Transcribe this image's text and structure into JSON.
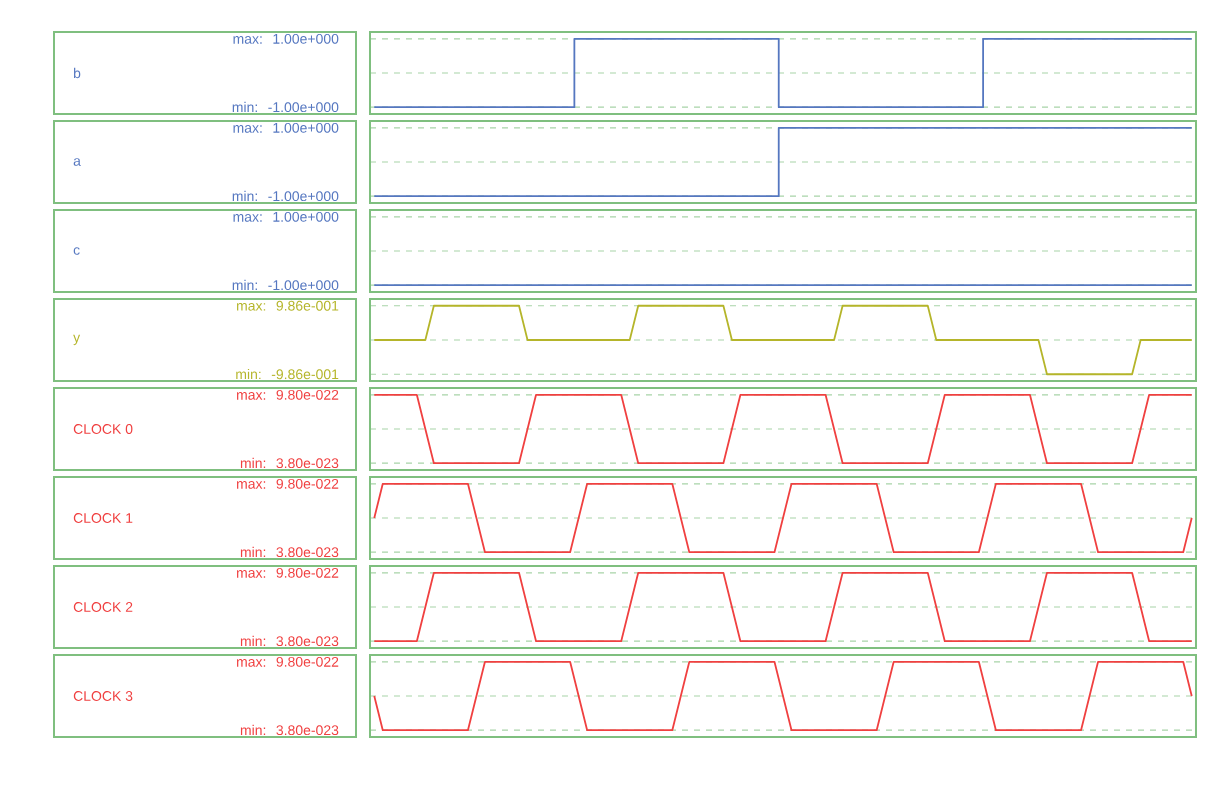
{
  "chart_data": [
    {
      "type": "step",
      "ylabel": "b",
      "color": "#5577c0",
      "grid": "y",
      "ylim": [
        -1.2,
        1.2
      ],
      "annotations": [
        "max:",
        "min:"
      ],
      "yticks": [
        {
          "value": 1,
          "label": "1.00e+000"
        },
        {
          "value": 0,
          "label": null
        },
        {
          "value": -1,
          "label": "-1.00e+000"
        }
      ],
      "categories": [
        null,
        null,
        null,
        null,
        null,
        null,
        null,
        null,
        null,
        null,
        null,
        null,
        null,
        null,
        null,
        null,
        null,
        null,
        null,
        null,
        null,
        null,
        null,
        null,
        null,
        null,
        null,
        null,
        null,
        null,
        null,
        null,
        null,
        null,
        null,
        null,
        null,
        null,
        null,
        null,
        null,
        null,
        null,
        null,
        null,
        null,
        null,
        null,
        null,
        null,
        null,
        null,
        null,
        null,
        null,
        null,
        null,
        null,
        null,
        null,
        null,
        null,
        null,
        null,
        null,
        null,
        null,
        null,
        null,
        null,
        null,
        null,
        null,
        null,
        null,
        null,
        null,
        null,
        null,
        null,
        null,
        null,
        null,
        null,
        null,
        null,
        null,
        null,
        null,
        null,
        null,
        null,
        null,
        null,
        null,
        null,
        null
      ],
      "values": [
        -1,
        -1,
        -1,
        -1,
        -1,
        -1,
        -1,
        -1,
        -1,
        -1,
        -1,
        -1,
        -1,
        -1,
        -1,
        -1,
        -1,
        -1,
        -1,
        -1,
        -1,
        -1,
        -1,
        -1,
        1,
        1,
        1,
        1,
        1,
        1,
        1,
        1,
        1,
        1,
        1,
        1,
        1,
        1,
        1,
        1,
        1,
        1,
        1,
        1,
        1,
        1,
        1,
        1,
        -1,
        -1,
        -1,
        -1,
        -1,
        -1,
        -1,
        -1,
        -1,
        -1,
        -1,
        -1,
        -1,
        -1,
        -1,
        -1,
        -1,
        -1,
        -1,
        -1,
        -1,
        -1,
        -1,
        -1,
        1,
        1,
        1,
        1,
        1,
        1,
        1,
        1,
        1,
        1,
        1,
        1,
        1,
        1,
        1,
        1,
        1,
        1,
        1,
        1,
        1,
        1,
        1,
        1,
        1
      ]
    },
    {
      "type": "step",
      "ylabel": "a",
      "color": "#5577c0",
      "grid": "y",
      "ylim": [
        -1.2,
        1.2
      ],
      "annotations": [
        "max:",
        "min:"
      ],
      "yticks": [
        {
          "value": 1,
          "label": "1.00e+000"
        },
        {
          "value": 0,
          "label": null
        },
        {
          "value": -1,
          "label": "-1.00e+000"
        }
      ],
      "categories": [
        null,
        null,
        null,
        null,
        null,
        null,
        null,
        null,
        null,
        null,
        null,
        null,
        null,
        null,
        null,
        null,
        null,
        null,
        null,
        null,
        null,
        null,
        null,
        null,
        null,
        null,
        null,
        null,
        null,
        null,
        null,
        null,
        null,
        null,
        null,
        null,
        null,
        null,
        null,
        null,
        null,
        null,
        null,
        null,
        null,
        null,
        null,
        null,
        null,
        null,
        null,
        null,
        null,
        null,
        null,
        null,
        null,
        null,
        null,
        null,
        null,
        null,
        null,
        null,
        null,
        null,
        null,
        null,
        null,
        null,
        null,
        null,
        null,
        null,
        null,
        null,
        null,
        null,
        null,
        null,
        null,
        null,
        null,
        null,
        null,
        null,
        null,
        null,
        null,
        null,
        null,
        null,
        null,
        null,
        null,
        null,
        null
      ],
      "values": [
        -1,
        -1,
        -1,
        -1,
        -1,
        -1,
        -1,
        -1,
        -1,
        -1,
        -1,
        -1,
        -1,
        -1,
        -1,
        -1,
        -1,
        -1,
        -1,
        -1,
        -1,
        -1,
        -1,
        -1,
        -1,
        -1,
        -1,
        -1,
        -1,
        -1,
        -1,
        -1,
        -1,
        -1,
        -1,
        -1,
        -1,
        -1,
        -1,
        -1,
        -1,
        -1,
        -1,
        -1,
        -1,
        -1,
        -1,
        -1,
        1,
        1,
        1,
        1,
        1,
        1,
        1,
        1,
        1,
        1,
        1,
        1,
        1,
        1,
        1,
        1,
        1,
        1,
        1,
        1,
        1,
        1,
        1,
        1,
        1,
        1,
        1,
        1,
        1,
        1,
        1,
        1,
        1,
        1,
        1,
        1,
        1,
        1,
        1,
        1,
        1,
        1,
        1,
        1,
        1,
        1,
        1,
        1,
        1
      ]
    },
    {
      "type": "step",
      "ylabel": "c",
      "color": "#5577c0",
      "grid": "y",
      "ylim": [
        -1.2,
        1.2
      ],
      "annotations": [
        "max:",
        "min:"
      ],
      "yticks": [
        {
          "value": 1,
          "label": "1.00e+000"
        },
        {
          "value": 0,
          "label": null
        },
        {
          "value": -1,
          "label": "-1.00e+000"
        }
      ],
      "categories": [
        null,
        null,
        null,
        null,
        null,
        null,
        null,
        null,
        null,
        null,
        null,
        null,
        null,
        null,
        null,
        null,
        null,
        null,
        null,
        null,
        null,
        null,
        null,
        null,
        null,
        null,
        null,
        null,
        null,
        null,
        null,
        null,
        null,
        null,
        null,
        null,
        null,
        null,
        null,
        null,
        null,
        null,
        null,
        null,
        null,
        null,
        null,
        null,
        null,
        null,
        null,
        null,
        null,
        null,
        null,
        null,
        null,
        null,
        null,
        null,
        null,
        null,
        null,
        null,
        null,
        null,
        null,
        null,
        null,
        null,
        null,
        null,
        null,
        null,
        null,
        null,
        null,
        null,
        null,
        null,
        null,
        null,
        null,
        null,
        null,
        null,
        null,
        null,
        null,
        null,
        null,
        null,
        null,
        null,
        null,
        null,
        null
      ],
      "values": [
        -1,
        -1,
        -1,
        -1,
        -1,
        -1,
        -1,
        -1,
        -1,
        -1,
        -1,
        -1,
        -1,
        -1,
        -1,
        -1,
        -1,
        -1,
        -1,
        -1,
        -1,
        -1,
        -1,
        -1,
        -1,
        -1,
        -1,
        -1,
        -1,
        -1,
        -1,
        -1,
        -1,
        -1,
        -1,
        -1,
        -1,
        -1,
        -1,
        -1,
        -1,
        -1,
        -1,
        -1,
        -1,
        -1,
        -1,
        -1,
        -1,
        -1,
        -1,
        -1,
        -1,
        -1,
        -1,
        -1,
        -1,
        -1,
        -1,
        -1,
        -1,
        -1,
        -1,
        -1,
        -1,
        -1,
        -1,
        -1,
        -1,
        -1,
        -1,
        -1,
        -1,
        -1,
        -1,
        -1,
        -1,
        -1,
        -1,
        -1,
        -1,
        -1,
        -1,
        -1,
        -1,
        -1,
        -1,
        -1,
        -1,
        -1,
        -1,
        -1,
        -1,
        -1,
        -1,
        -1,
        -1
      ]
    },
    {
      "type": "line",
      "ylabel": "y",
      "color": "#b5b52a",
      "grid": "y",
      "ylim": [
        -1.18,
        1.18
      ],
      "annotations": [
        "max:",
        "min:"
      ],
      "yticks": [
        {
          "value": 0.986,
          "label": "9.86e-001"
        },
        {
          "value": 0,
          "label": null
        },
        {
          "value": -0.986,
          "label": "-9.86e-001"
        }
      ],
      "categories": [
        null,
        null,
        null,
        null,
        null,
        null,
        null,
        null,
        null,
        null,
        null,
        null,
        null,
        null,
        null,
        null,
        null,
        null,
        null,
        null,
        null,
        null,
        null,
        null,
        null,
        null,
        null,
        null,
        null,
        null,
        null,
        null,
        null,
        null,
        null,
        null,
        null,
        null,
        null,
        null,
        null,
        null,
        null,
        null,
        null,
        null,
        null,
        null,
        null,
        null,
        null,
        null,
        null,
        null,
        null,
        null,
        null,
        null,
        null,
        null,
        null,
        null,
        null,
        null,
        null,
        null,
        null,
        null,
        null,
        null,
        null,
        null,
        null,
        null,
        null,
        null,
        null,
        null,
        null,
        null,
        null,
        null,
        null,
        null,
        null,
        null,
        null,
        null,
        null,
        null,
        null,
        null,
        null,
        null,
        null,
        null,
        null
      ],
      "values": [
        0,
        0,
        0,
        0,
        0,
        0,
        0,
        0.986,
        0.986,
        0.986,
        0.986,
        0.986,
        0.986,
        0.986,
        0.986,
        0.986,
        0.986,
        0.986,
        0,
        0,
        0,
        0,
        0,
        0,
        0,
        0,
        0,
        0,
        0,
        0,
        0,
        0.986,
        0.986,
        0.986,
        0.986,
        0.986,
        0.986,
        0.986,
        0.986,
        0.986,
        0.986,
        0.986,
        0,
        0,
        0,
        0,
        0,
        0,
        0,
        0,
        0,
        0,
        0,
        0,
        0,
        0.986,
        0.986,
        0.986,
        0.986,
        0.986,
        0.986,
        0.986,
        0.986,
        0.986,
        0.986,
        0.986,
        0,
        0,
        0,
        0,
        0,
        0,
        0,
        0,
        0,
        0,
        0,
        0,
        0,
        -0.986,
        -0.986,
        -0.986,
        -0.986,
        -0.986,
        -0.986,
        -0.986,
        -0.986,
        -0.986,
        -0.986,
        -0.986,
        0,
        0,
        0,
        0,
        0,
        0,
        0
      ]
    },
    {
      "type": "line",
      "ylabel": "CLOCK 0",
      "color": "#f04040",
      "grid": "y",
      "ylim": [
        -5.6e-23,
        1.074e-21
      ],
      "annotations": [
        "max:",
        "min:"
      ],
      "yticks": [
        {
          "value": 9.8e-22,
          "label": "9.80e-022"
        },
        {
          "value": 5.09e-22,
          "label": null
        },
        {
          "value": 3.8e-23,
          "label": "3.80e-023"
        }
      ],
      "categories": [
        null,
        null,
        null,
        null,
        null,
        null,
        null,
        null,
        null,
        null,
        null,
        null,
        null,
        null,
        null,
        null,
        null,
        null,
        null,
        null,
        null,
        null,
        null,
        null,
        null,
        null,
        null,
        null,
        null,
        null,
        null,
        null,
        null,
        null,
        null,
        null,
        null,
        null,
        null,
        null,
        null,
        null,
        null,
        null,
        null,
        null,
        null,
        null,
        null,
        null,
        null,
        null,
        null,
        null,
        null,
        null,
        null,
        null,
        null,
        null,
        null,
        null,
        null,
        null,
        null,
        null,
        null,
        null,
        null,
        null,
        null,
        null,
        null,
        null,
        null,
        null,
        null,
        null,
        null,
        null,
        null,
        null,
        null,
        null,
        null,
        null,
        null,
        null,
        null,
        null,
        null,
        null,
        null,
        null,
        null,
        null,
        null
      ],
      "values": [
        9.8e-22,
        9.8e-22,
        9.8e-22,
        9.8e-22,
        9.8e-22,
        9.8e-22,
        5.09e-22,
        3.8e-23,
        3.8e-23,
        3.8e-23,
        3.8e-23,
        3.8e-23,
        3.8e-23,
        3.8e-23,
        3.8e-23,
        3.8e-23,
        3.8e-23,
        3.8e-23,
        5.09e-22,
        9.8e-22,
        9.8e-22,
        9.8e-22,
        9.8e-22,
        9.8e-22,
        9.8e-22,
        9.8e-22,
        9.8e-22,
        9.8e-22,
        9.8e-22,
        9.8e-22,
        5.09e-22,
        3.8e-23,
        3.8e-23,
        3.8e-23,
        3.8e-23,
        3.8e-23,
        3.8e-23,
        3.8e-23,
        3.8e-23,
        3.8e-23,
        3.8e-23,
        3.8e-23,
        5.09e-22,
        9.8e-22,
        9.8e-22,
        9.8e-22,
        9.8e-22,
        9.8e-22,
        9.8e-22,
        9.8e-22,
        9.8e-22,
        9.8e-22,
        9.8e-22,
        9.8e-22,
        5.09e-22,
        3.8e-23,
        3.8e-23,
        3.8e-23,
        3.8e-23,
        3.8e-23,
        3.8e-23,
        3.8e-23,
        3.8e-23,
        3.8e-23,
        3.8e-23,
        3.8e-23,
        5.09e-22,
        9.8e-22,
        9.8e-22,
        9.8e-22,
        9.8e-22,
        9.8e-22,
        9.8e-22,
        9.8e-22,
        9.8e-22,
        9.8e-22,
        9.8e-22,
        9.8e-22,
        5.09e-22,
        3.8e-23,
        3.8e-23,
        3.8e-23,
        3.8e-23,
        3.8e-23,
        3.8e-23,
        3.8e-23,
        3.8e-23,
        3.8e-23,
        3.8e-23,
        3.8e-23,
        5.09e-22,
        9.8e-22,
        9.8e-22,
        9.8e-22,
        9.8e-22,
        9.8e-22,
        9.8e-22
      ]
    },
    {
      "type": "line",
      "ylabel": "CLOCK 1",
      "color": "#f04040",
      "grid": "y",
      "ylim": [
        -5.6e-23,
        1.074e-21
      ],
      "annotations": [
        "max:",
        "min:"
      ],
      "yticks": [
        {
          "value": 9.8e-22,
          "label": "9.80e-022"
        },
        {
          "value": 5.09e-22,
          "label": null
        },
        {
          "value": 3.8e-23,
          "label": "3.80e-023"
        }
      ],
      "categories": [
        null,
        null,
        null,
        null,
        null,
        null,
        null,
        null,
        null,
        null,
        null,
        null,
        null,
        null,
        null,
        null,
        null,
        null,
        null,
        null,
        null,
        null,
        null,
        null,
        null,
        null,
        null,
        null,
        null,
        null,
        null,
        null,
        null,
        null,
        null,
        null,
        null,
        null,
        null,
        null,
        null,
        null,
        null,
        null,
        null,
        null,
        null,
        null,
        null,
        null,
        null,
        null,
        null,
        null,
        null,
        null,
        null,
        null,
        null,
        null,
        null,
        null,
        null,
        null,
        null,
        null,
        null,
        null,
        null,
        null,
        null,
        null,
        null,
        null,
        null,
        null,
        null,
        null,
        null,
        null,
        null,
        null,
        null,
        null,
        null,
        null,
        null,
        null,
        null,
        null,
        null,
        null,
        null,
        null,
        null,
        null,
        null
      ],
      "values": [
        5.09e-22,
        9.8e-22,
        9.8e-22,
        9.8e-22,
        9.8e-22,
        9.8e-22,
        9.8e-22,
        9.8e-22,
        9.8e-22,
        9.8e-22,
        9.8e-22,
        9.8e-22,
        5.09e-22,
        3.8e-23,
        3.8e-23,
        3.8e-23,
        3.8e-23,
        3.8e-23,
        3.8e-23,
        3.8e-23,
        3.8e-23,
        3.8e-23,
        3.8e-23,
        3.8e-23,
        5.09e-22,
        9.8e-22,
        9.8e-22,
        9.8e-22,
        9.8e-22,
        9.8e-22,
        9.8e-22,
        9.8e-22,
        9.8e-22,
        9.8e-22,
        9.8e-22,
        9.8e-22,
        5.09e-22,
        3.8e-23,
        3.8e-23,
        3.8e-23,
        3.8e-23,
        3.8e-23,
        3.8e-23,
        3.8e-23,
        3.8e-23,
        3.8e-23,
        3.8e-23,
        3.8e-23,
        5.09e-22,
        9.8e-22,
        9.8e-22,
        9.8e-22,
        9.8e-22,
        9.8e-22,
        9.8e-22,
        9.8e-22,
        9.8e-22,
        9.8e-22,
        9.8e-22,
        9.8e-22,
        5.09e-22,
        3.8e-23,
        3.8e-23,
        3.8e-23,
        3.8e-23,
        3.8e-23,
        3.8e-23,
        3.8e-23,
        3.8e-23,
        3.8e-23,
        3.8e-23,
        3.8e-23,
        5.09e-22,
        9.8e-22,
        9.8e-22,
        9.8e-22,
        9.8e-22,
        9.8e-22,
        9.8e-22,
        9.8e-22,
        9.8e-22,
        9.8e-22,
        9.8e-22,
        9.8e-22,
        5.09e-22,
        3.8e-23,
        3.8e-23,
        3.8e-23,
        3.8e-23,
        3.8e-23,
        3.8e-23,
        3.8e-23,
        3.8e-23,
        3.8e-23,
        3.8e-23,
        3.8e-23,
        5.09e-22
      ]
    },
    {
      "type": "line",
      "ylabel": "CLOCK 2",
      "color": "#f04040",
      "grid": "y",
      "ylim": [
        -5.6e-23,
        1.074e-21
      ],
      "annotations": [
        "max:",
        "min:"
      ],
      "yticks": [
        {
          "value": 9.8e-22,
          "label": "9.80e-022"
        },
        {
          "value": 5.09e-22,
          "label": null
        },
        {
          "value": 3.8e-23,
          "label": "3.80e-023"
        }
      ],
      "categories": [
        null,
        null,
        null,
        null,
        null,
        null,
        null,
        null,
        null,
        null,
        null,
        null,
        null,
        null,
        null,
        null,
        null,
        null,
        null,
        null,
        null,
        null,
        null,
        null,
        null,
        null,
        null,
        null,
        null,
        null,
        null,
        null,
        null,
        null,
        null,
        null,
        null,
        null,
        null,
        null,
        null,
        null,
        null,
        null,
        null,
        null,
        null,
        null,
        null,
        null,
        null,
        null,
        null,
        null,
        null,
        null,
        null,
        null,
        null,
        null,
        null,
        null,
        null,
        null,
        null,
        null,
        null,
        null,
        null,
        null,
        null,
        null,
        null,
        null,
        null,
        null,
        null,
        null,
        null,
        null,
        null,
        null,
        null,
        null,
        null,
        null,
        null,
        null,
        null,
        null,
        null,
        null,
        null,
        null,
        null,
        null,
        null
      ],
      "values": [
        3.8e-23,
        3.8e-23,
        3.8e-23,
        3.8e-23,
        3.8e-23,
        3.8e-23,
        5.09e-22,
        9.8e-22,
        9.8e-22,
        9.8e-22,
        9.8e-22,
        9.8e-22,
        9.8e-22,
        9.8e-22,
        9.8e-22,
        9.8e-22,
        9.8e-22,
        9.8e-22,
        5.09e-22,
        3.8e-23,
        3.8e-23,
        3.8e-23,
        3.8e-23,
        3.8e-23,
        3.8e-23,
        3.8e-23,
        3.8e-23,
        3.8e-23,
        3.8e-23,
        3.8e-23,
        5.09e-22,
        9.8e-22,
        9.8e-22,
        9.8e-22,
        9.8e-22,
        9.8e-22,
        9.8e-22,
        9.8e-22,
        9.8e-22,
        9.8e-22,
        9.8e-22,
        9.8e-22,
        5.09e-22,
        3.8e-23,
        3.8e-23,
        3.8e-23,
        3.8e-23,
        3.8e-23,
        3.8e-23,
        3.8e-23,
        3.8e-23,
        3.8e-23,
        3.8e-23,
        3.8e-23,
        5.09e-22,
        9.8e-22,
        9.8e-22,
        9.8e-22,
        9.8e-22,
        9.8e-22,
        9.8e-22,
        9.8e-22,
        9.8e-22,
        9.8e-22,
        9.8e-22,
        9.8e-22,
        5.09e-22,
        3.8e-23,
        3.8e-23,
        3.8e-23,
        3.8e-23,
        3.8e-23,
        3.8e-23,
        3.8e-23,
        3.8e-23,
        3.8e-23,
        3.8e-23,
        3.8e-23,
        5.09e-22,
        9.8e-22,
        9.8e-22,
        9.8e-22,
        9.8e-22,
        9.8e-22,
        9.8e-22,
        9.8e-22,
        9.8e-22,
        9.8e-22,
        9.8e-22,
        9.8e-22,
        5.09e-22,
        3.8e-23,
        3.8e-23,
        3.8e-23,
        3.8e-23,
        3.8e-23,
        3.8e-23
      ]
    },
    {
      "type": "line",
      "ylabel": "CLOCK 3",
      "color": "#f04040",
      "grid": "y",
      "ylim": [
        -5.6e-23,
        1.074e-21
      ],
      "annotations": [
        "max:",
        "min:"
      ],
      "yticks": [
        {
          "value": 9.8e-22,
          "label": "9.80e-022"
        },
        {
          "value": 5.09e-22,
          "label": null
        },
        {
          "value": 3.8e-23,
          "label": "3.80e-023"
        }
      ],
      "categories": [
        null,
        null,
        null,
        null,
        null,
        null,
        null,
        null,
        null,
        null,
        null,
        null,
        null,
        null,
        null,
        null,
        null,
        null,
        null,
        null,
        null,
        null,
        null,
        null,
        null,
        null,
        null,
        null,
        null,
        null,
        null,
        null,
        null,
        null,
        null,
        null,
        null,
        null,
        null,
        null,
        null,
        null,
        null,
        null,
        null,
        null,
        null,
        null,
        null,
        null,
        null,
        null,
        null,
        null,
        null,
        null,
        null,
        null,
        null,
        null,
        null,
        null,
        null,
        null,
        null,
        null,
        null,
        null,
        null,
        null,
        null,
        null,
        null,
        null,
        null,
        null,
        null,
        null,
        null,
        null,
        null,
        null,
        null,
        null,
        null,
        null,
        null,
        null,
        null,
        null,
        null,
        null,
        null,
        null,
        null,
        null,
        null
      ],
      "values": [
        5.09e-22,
        3.8e-23,
        3.8e-23,
        3.8e-23,
        3.8e-23,
        3.8e-23,
        3.8e-23,
        3.8e-23,
        3.8e-23,
        3.8e-23,
        3.8e-23,
        3.8e-23,
        5.09e-22,
        9.8e-22,
        9.8e-22,
        9.8e-22,
        9.8e-22,
        9.8e-22,
        9.8e-22,
        9.8e-22,
        9.8e-22,
        9.8e-22,
        9.8e-22,
        9.8e-22,
        5.09e-22,
        3.8e-23,
        3.8e-23,
        3.8e-23,
        3.8e-23,
        3.8e-23,
        3.8e-23,
        3.8e-23,
        3.8e-23,
        3.8e-23,
        3.8e-23,
        3.8e-23,
        5.09e-22,
        9.8e-22,
        9.8e-22,
        9.8e-22,
        9.8e-22,
        9.8e-22,
        9.8e-22,
        9.8e-22,
        9.8e-22,
        9.8e-22,
        9.8e-22,
        9.8e-22,
        5.09e-22,
        3.8e-23,
        3.8e-23,
        3.8e-23,
        3.8e-23,
        3.8e-23,
        3.8e-23,
        3.8e-23,
        3.8e-23,
        3.8e-23,
        3.8e-23,
        3.8e-23,
        5.09e-22,
        9.8e-22,
        9.8e-22,
        9.8e-22,
        9.8e-22,
        9.8e-22,
        9.8e-22,
        9.8e-22,
        9.8e-22,
        9.8e-22,
        9.8e-22,
        9.8e-22,
        5.09e-22,
        3.8e-23,
        3.8e-23,
        3.8e-23,
        3.8e-23,
        3.8e-23,
        3.8e-23,
        3.8e-23,
        3.8e-23,
        3.8e-23,
        3.8e-23,
        3.8e-23,
        5.09e-22,
        9.8e-22,
        9.8e-22,
        9.8e-22,
        9.8e-22,
        9.8e-22,
        9.8e-22,
        9.8e-22,
        9.8e-22,
        9.8e-22,
        9.8e-22,
        9.8e-22,
        5.09e-22
      ]
    }
  ]
}
